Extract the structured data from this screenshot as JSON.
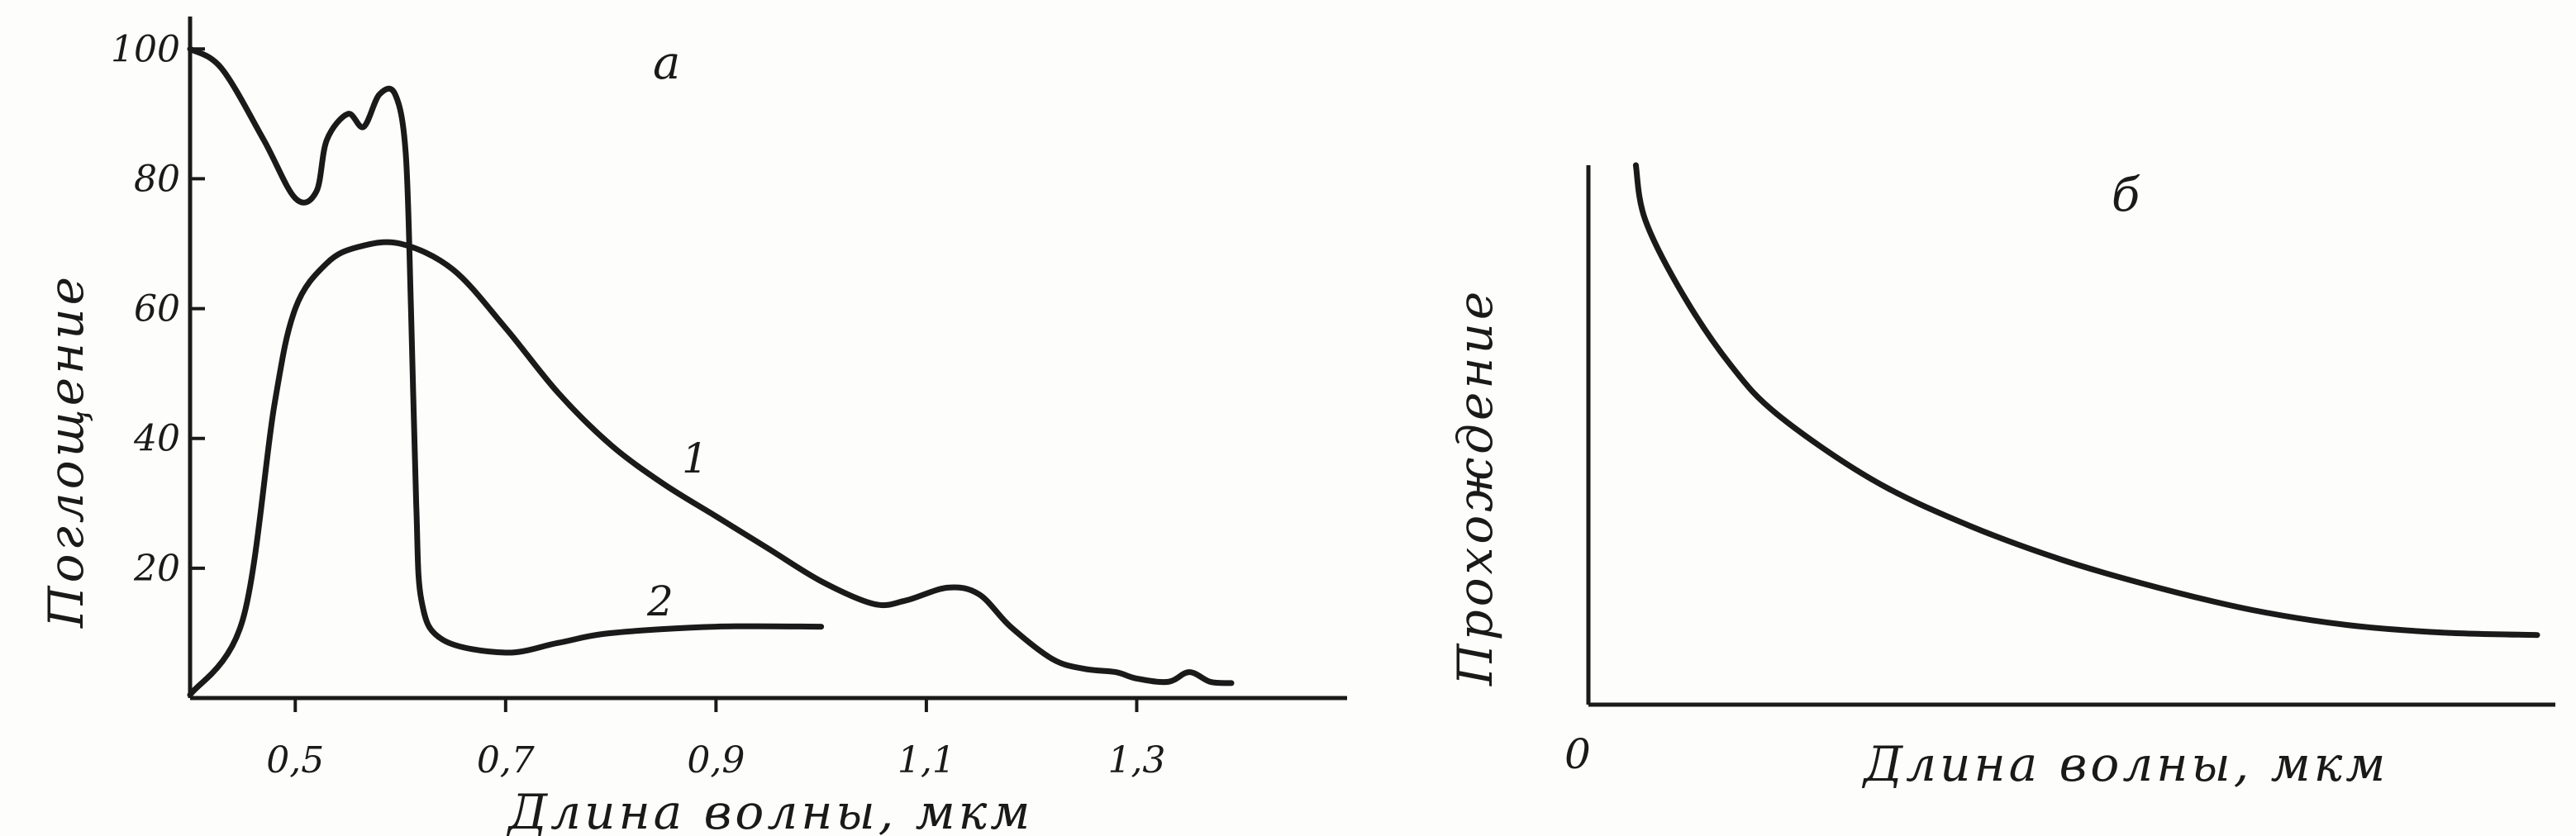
{
  "chart_data": [
    {
      "type": "line",
      "panel_label": "a",
      "xlabel": "Длина волны, мкм",
      "ylabel": "Поглощение",
      "xlim": [
        0.4,
        1.5
      ],
      "ylim": [
        0,
        105
      ],
      "x_ticks": [
        {
          "value": 0.5,
          "label": "0,5"
        },
        {
          "value": 0.7,
          "label": "0,7"
        },
        {
          "value": 0.9,
          "label": "0,9"
        },
        {
          "value": 1.1,
          "label": "1,1"
        },
        {
          "value": 1.3,
          "label": "1,3"
        }
      ],
      "y_ticks": [
        {
          "value": 20,
          "label": "20"
        },
        {
          "value": 40,
          "label": "40"
        },
        {
          "value": 60,
          "label": "60"
        },
        {
          "value": 80,
          "label": "80"
        },
        {
          "value": 100,
          "label": "100"
        }
      ],
      "series": [
        {
          "name": "1",
          "points": [
            [
              0.4,
              0.5
            ],
            [
              0.45,
              12
            ],
            [
              0.48,
              45
            ],
            [
              0.5,
              60
            ],
            [
              0.53,
              67
            ],
            [
              0.56,
              69.5
            ],
            [
              0.6,
              70
            ],
            [
              0.65,
              66
            ],
            [
              0.7,
              57
            ],
            [
              0.75,
              47
            ],
            [
              0.8,
              39
            ],
            [
              0.85,
              33
            ],
            [
              0.9,
              28
            ],
            [
              0.95,
              23
            ],
            [
              1.0,
              18
            ],
            [
              1.05,
              14.5
            ],
            [
              1.08,
              15
            ],
            [
              1.12,
              17
            ],
            [
              1.15,
              16
            ],
            [
              1.18,
              11
            ],
            [
              1.22,
              6
            ],
            [
              1.25,
              4.5
            ],
            [
              1.28,
              4
            ],
            [
              1.3,
              3
            ],
            [
              1.33,
              2.5
            ],
            [
              1.35,
              4
            ],
            [
              1.37,
              2.5
            ],
            [
              1.39,
              2.3
            ]
          ]
        },
        {
          "name": "2",
          "points": [
            [
              0.4,
              100
            ],
            [
              0.43,
              97
            ],
            [
              0.47,
              86
            ],
            [
              0.5,
              77
            ],
            [
              0.52,
              78
            ],
            [
              0.53,
              86
            ],
            [
              0.55,
              90
            ],
            [
              0.565,
              88
            ],
            [
              0.58,
              93
            ],
            [
              0.595,
              93
            ],
            [
              0.605,
              84
            ],
            [
              0.61,
              60
            ],
            [
              0.615,
              30
            ],
            [
              0.62,
              15
            ],
            [
              0.64,
              9
            ],
            [
              0.7,
              7
            ],
            [
              0.75,
              8.5
            ],
            [
              0.8,
              10
            ],
            [
              0.9,
              11
            ],
            [
              1.0,
              11
            ]
          ]
        }
      ]
    },
    {
      "type": "line",
      "panel_label": "б",
      "xlabel": "Длина волны, мкм",
      "ylabel": "Прохождение",
      "origin_label": "0",
      "xlim": [
        0,
        10
      ],
      "ylim": [
        0,
        10
      ],
      "series": [
        {
          "name": "",
          "points": [
            [
              0.5,
              10
            ],
            [
              0.6,
              8.9
            ],
            [
              1,
              7.4
            ],
            [
              1.5,
              6.0
            ],
            [
              2,
              5.0
            ],
            [
              3,
              3.7
            ],
            [
              4,
              2.8
            ],
            [
              5,
              2.1
            ],
            [
              6,
              1.55
            ],
            [
              7,
              1.1
            ],
            [
              8,
              0.8
            ],
            [
              9,
              0.65
            ],
            [
              10,
              0.6
            ]
          ]
        }
      ]
    }
  ]
}
